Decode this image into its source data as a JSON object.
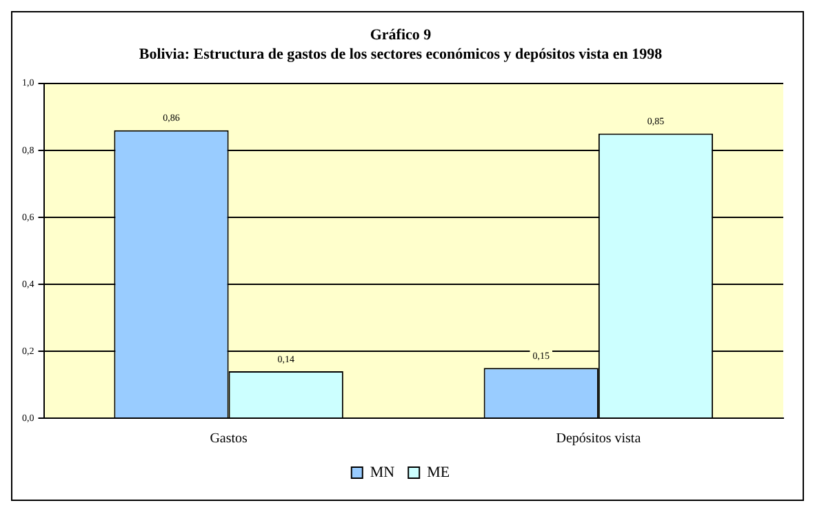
{
  "chart_data": {
    "type": "bar",
    "title": "Gráfico 9",
    "subtitle": "Bolivia: Estructura de gastos de los sectores económicos y depósitos vista en 1998",
    "categories": [
      "Gastos",
      "Depósitos vista"
    ],
    "series": [
      {
        "name": "MN",
        "color": "#99ccff",
        "values": [
          0.86,
          0.15
        ],
        "value_labels": [
          "0,86",
          "0,15"
        ]
      },
      {
        "name": "ME",
        "color": "#ccffff",
        "values": [
          0.14,
          0.85
        ],
        "value_labels": [
          "0,14",
          "0,85"
        ]
      }
    ],
    "ylim": [
      0,
      1
    ],
    "yticks": [
      {
        "value": 0,
        "label": "0,0"
      },
      {
        "value": 0.2,
        "label": "0,2"
      },
      {
        "value": 0.4,
        "label": "0,4"
      },
      {
        "value": 0.6,
        "label": "0,6"
      },
      {
        "value": 0.8,
        "label": "0,8"
      },
      {
        "value": 1,
        "label": "1,0"
      }
    ],
    "grid": "y",
    "legend": "bottom"
  }
}
